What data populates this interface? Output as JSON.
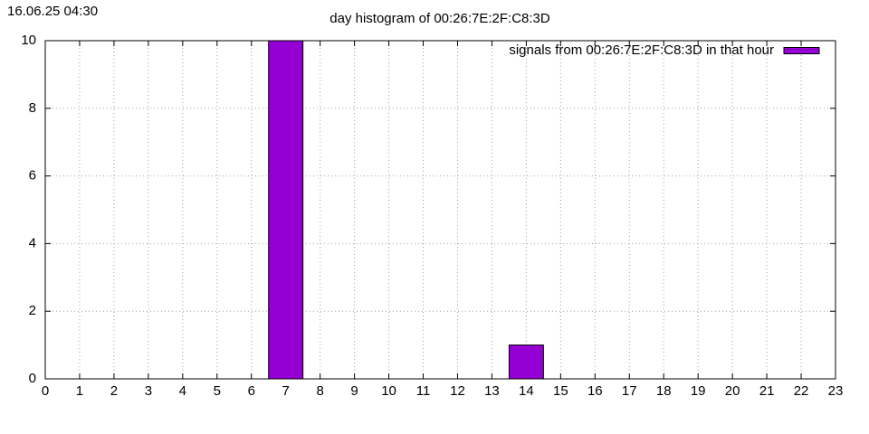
{
  "chart_data": {
    "type": "bar",
    "timestamp": "16.06.25 04:30",
    "title": "day histogram of 00:26:7E:2F:C8:3D",
    "x": [
      7,
      14
    ],
    "series": [
      {
        "name": "signals from 00:26:7E:2F:C8:3D in that hour",
        "color": "#9400d3",
        "values": [
          10,
          1
        ]
      }
    ],
    "xlim": [
      0,
      23
    ],
    "xticks": [
      0,
      1,
      2,
      3,
      4,
      5,
      6,
      7,
      8,
      9,
      10,
      11,
      12,
      13,
      14,
      15,
      16,
      17,
      18,
      19,
      20,
      21,
      22,
      23
    ],
    "ylim": [
      0,
      10
    ],
    "yticks": [
      0,
      2,
      4,
      6,
      8,
      10
    ],
    "grid": true,
    "legend": "top-right"
  }
}
